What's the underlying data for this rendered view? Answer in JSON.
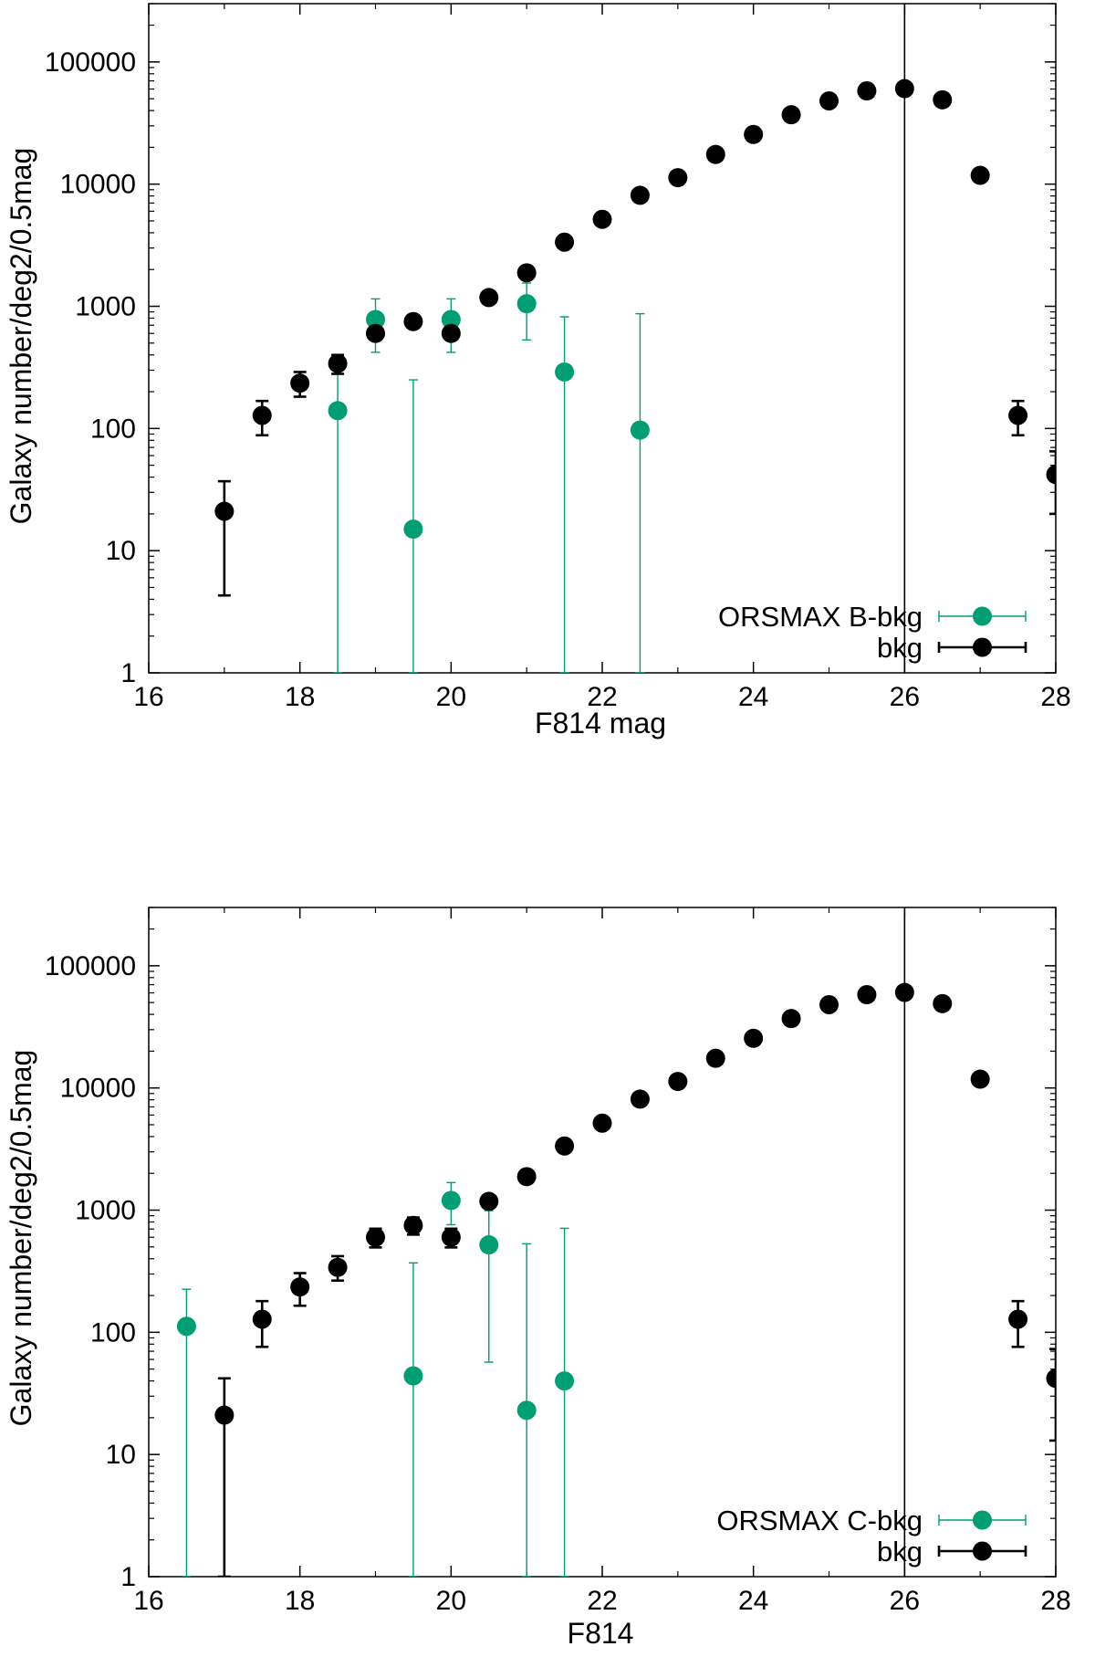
{
  "chart_data": [
    {
      "type": "scatter",
      "panel": "top",
      "title": "",
      "xlabel": "F814 mag",
      "ylabel": "Galaxy number/deg2/0.5mag",
      "xlim": [
        16,
        28
      ],
      "ylim": [
        1,
        300000
      ],
      "yscale": "log",
      "x_ticks": [
        "16",
        "18",
        "20",
        "22",
        "24",
        "26",
        "28"
      ],
      "y_ticks": [
        "1",
        "10",
        "100",
        "1000",
        "10000",
        "100000"
      ],
      "vline": {
        "x": 26,
        "color": "#000000"
      },
      "legend_position": "bottom-right",
      "series": [
        {
          "name": "ORSMAX B-bkg",
          "color": "#009e73",
          "points": [
            {
              "x": 18.5,
              "y": 140,
              "lo": 1,
              "hi": 350
            },
            {
              "x": 19.0,
              "y": 780,
              "lo": 420,
              "hi": 1150
            },
            {
              "x": 19.5,
              "y": 15,
              "lo": 1,
              "hi": 250
            },
            {
              "x": 20.0,
              "y": 780,
              "lo": 420,
              "hi": 1150
            },
            {
              "x": 21.0,
              "y": 1050,
              "lo": 530,
              "hi": 1550
            },
            {
              "x": 21.5,
              "y": 290,
              "lo": 1,
              "hi": 820
            },
            {
              "x": 22.5,
              "y": 97,
              "lo": 1,
              "hi": 870
            }
          ]
        },
        {
          "name": "bkg",
          "color": "#000000",
          "points": [
            {
              "x": 17.0,
              "y": 21,
              "lo": 4.3,
              "hi": 37
            },
            {
              "x": 17.5,
              "y": 128,
              "lo": 88,
              "hi": 168
            },
            {
              "x": 18.0,
              "y": 235,
              "lo": 182,
              "hi": 290
            },
            {
              "x": 18.5,
              "y": 340,
              "lo": 280,
              "hi": 400
            },
            {
              "x": 19.0,
              "y": 600
            },
            {
              "x": 19.5,
              "y": 750
            },
            {
              "x": 20.0,
              "y": 600
            },
            {
              "x": 20.5,
              "y": 1180
            },
            {
              "x": 21.0,
              "y": 1880
            },
            {
              "x": 21.5,
              "y": 3350
            },
            {
              "x": 22.0,
              "y": 5150
            },
            {
              "x": 22.5,
              "y": 8100
            },
            {
              "x": 23.0,
              "y": 11300
            },
            {
              "x": 23.5,
              "y": 17500
            },
            {
              "x": 24.0,
              "y": 25500
            },
            {
              "x": 24.5,
              "y": 37000
            },
            {
              "x": 25.0,
              "y": 48000
            },
            {
              "x": 25.5,
              "y": 58000
            },
            {
              "x": 26.0,
              "y": 60500
            },
            {
              "x": 26.5,
              "y": 49000
            },
            {
              "x": 27.0,
              "y": 11800
            },
            {
              "x": 27.5,
              "y": 128,
              "lo": 88,
              "hi": 168
            },
            {
              "x": 28.0,
              "y": 42,
              "lo": 20,
              "hi": 65
            }
          ]
        }
      ]
    },
    {
      "type": "scatter",
      "panel": "bottom",
      "title": "",
      "xlabel": "F814",
      "ylabel": "Galaxy number/deg2/0.5mag",
      "xlim": [
        16,
        28
      ],
      "ylim": [
        1,
        300000
      ],
      "yscale": "log",
      "x_ticks": [
        "16",
        "18",
        "20",
        "22",
        "24",
        "26",
        "28"
      ],
      "y_ticks": [
        "1",
        "10",
        "100",
        "1000",
        "10000",
        "100000"
      ],
      "vline": {
        "x": 26,
        "color": "#000000"
      },
      "legend_position": "bottom-right",
      "series": [
        {
          "name": "ORSMAX C-bkg",
          "color": "#009e73",
          "points": [
            {
              "x": 16.5,
              "y": 112,
              "lo": 1,
              "hi": 225
            },
            {
              "x": 19.5,
              "y": 44,
              "lo": 1,
              "hi": 370
            },
            {
              "x": 20.0,
              "y": 1200,
              "lo": 760,
              "hi": 1680
            },
            {
              "x": 20.5,
              "y": 520,
              "lo": 57,
              "hi": 990
            },
            {
              "x": 21.0,
              "y": 23,
              "lo": 1,
              "hi": 530
            },
            {
              "x": 21.5,
              "y": 40,
              "lo": 1,
              "hi": 710
            }
          ]
        },
        {
          "name": "bkg",
          "color": "#000000",
          "points": [
            {
              "x": 17.0,
              "y": 21,
              "lo": 1,
              "hi": 42
            },
            {
              "x": 17.5,
              "y": 128,
              "lo": 76,
              "hi": 180
            },
            {
              "x": 18.0,
              "y": 235,
              "lo": 165,
              "hi": 305
            },
            {
              "x": 18.5,
              "y": 340,
              "lo": 265,
              "hi": 420
            },
            {
              "x": 19.0,
              "y": 600,
              "lo": 495,
              "hi": 705
            },
            {
              "x": 19.5,
              "y": 750,
              "lo": 630,
              "hi": 870
            },
            {
              "x": 20.0,
              "y": 600,
              "lo": 495,
              "hi": 705
            },
            {
              "x": 20.5,
              "y": 1180
            },
            {
              "x": 21.0,
              "y": 1880
            },
            {
              "x": 21.5,
              "y": 3350
            },
            {
              "x": 22.0,
              "y": 5150
            },
            {
              "x": 22.5,
              "y": 8100
            },
            {
              "x": 23.0,
              "y": 11300
            },
            {
              "x": 23.5,
              "y": 17500
            },
            {
              "x": 24.0,
              "y": 25500
            },
            {
              "x": 24.5,
              "y": 37000
            },
            {
              "x": 25.0,
              "y": 48000
            },
            {
              "x": 25.5,
              "y": 58000
            },
            {
              "x": 26.0,
              "y": 60500
            },
            {
              "x": 26.5,
              "y": 49000
            },
            {
              "x": 27.0,
              "y": 11800
            },
            {
              "x": 27.5,
              "y": 128,
              "lo": 76,
              "hi": 180
            },
            {
              "x": 28.0,
              "y": 42,
              "lo": 13,
              "hi": 73
            }
          ]
        }
      ]
    }
  ]
}
